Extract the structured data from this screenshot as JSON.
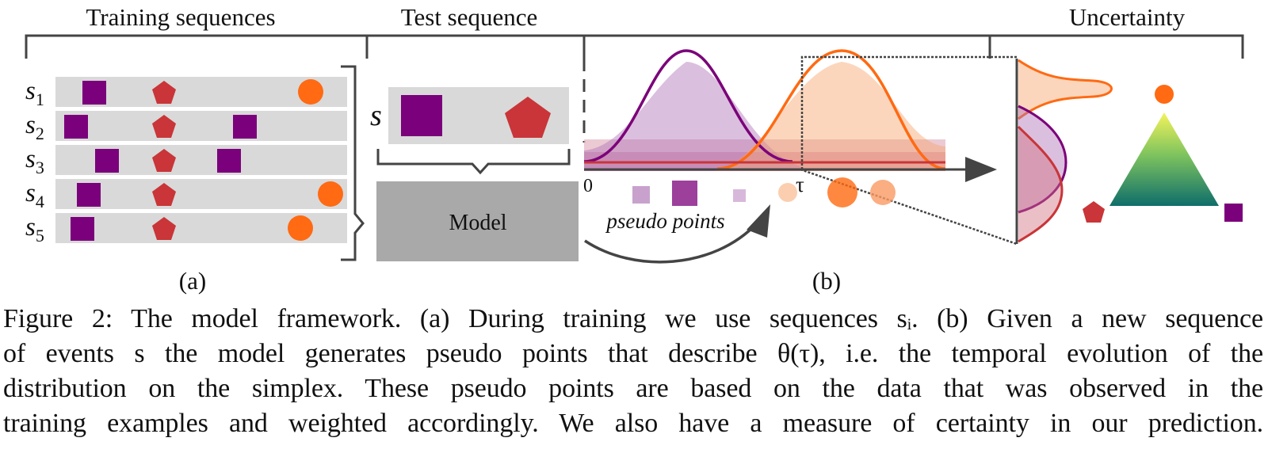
{
  "headers": {
    "training": "Training sequences",
    "test": "Test sequence",
    "uncertainty": "Uncertainty"
  },
  "sequence_labels": [
    {
      "base": "s",
      "sub": "1"
    },
    {
      "base": "s",
      "sub": "2"
    },
    {
      "base": "s",
      "sub": "3"
    },
    {
      "base": "s",
      "sub": "4"
    },
    {
      "base": "s",
      "sub": "5"
    }
  ],
  "test_label": "s",
  "model_label": "Model",
  "axis": {
    "origin": "0",
    "tau": "τ"
  },
  "pseudo_points_label": "pseudo points",
  "panel_labels": {
    "a": "(a)",
    "b": "(b)"
  },
  "colors": {
    "square": "#7b007b",
    "pentagon": "#c93538",
    "circle": "#ff6a12",
    "row_bg": "#d9d9d9",
    "model_bg": "#a9a9a9"
  },
  "caption_lines": [
    "Figure 2: The model framework. (a) During training we use sequences sᵢ. (b) Given a new sequence",
    "of events s the model generates pseudo points that describe θ(τ), i.e. the temporal evolution of the",
    "distribution on the simplex. These pseudo points are based on the data that was observed in the",
    "training examples and weighted accordingly. We also have a measure of certainty in our prediction."
  ]
}
